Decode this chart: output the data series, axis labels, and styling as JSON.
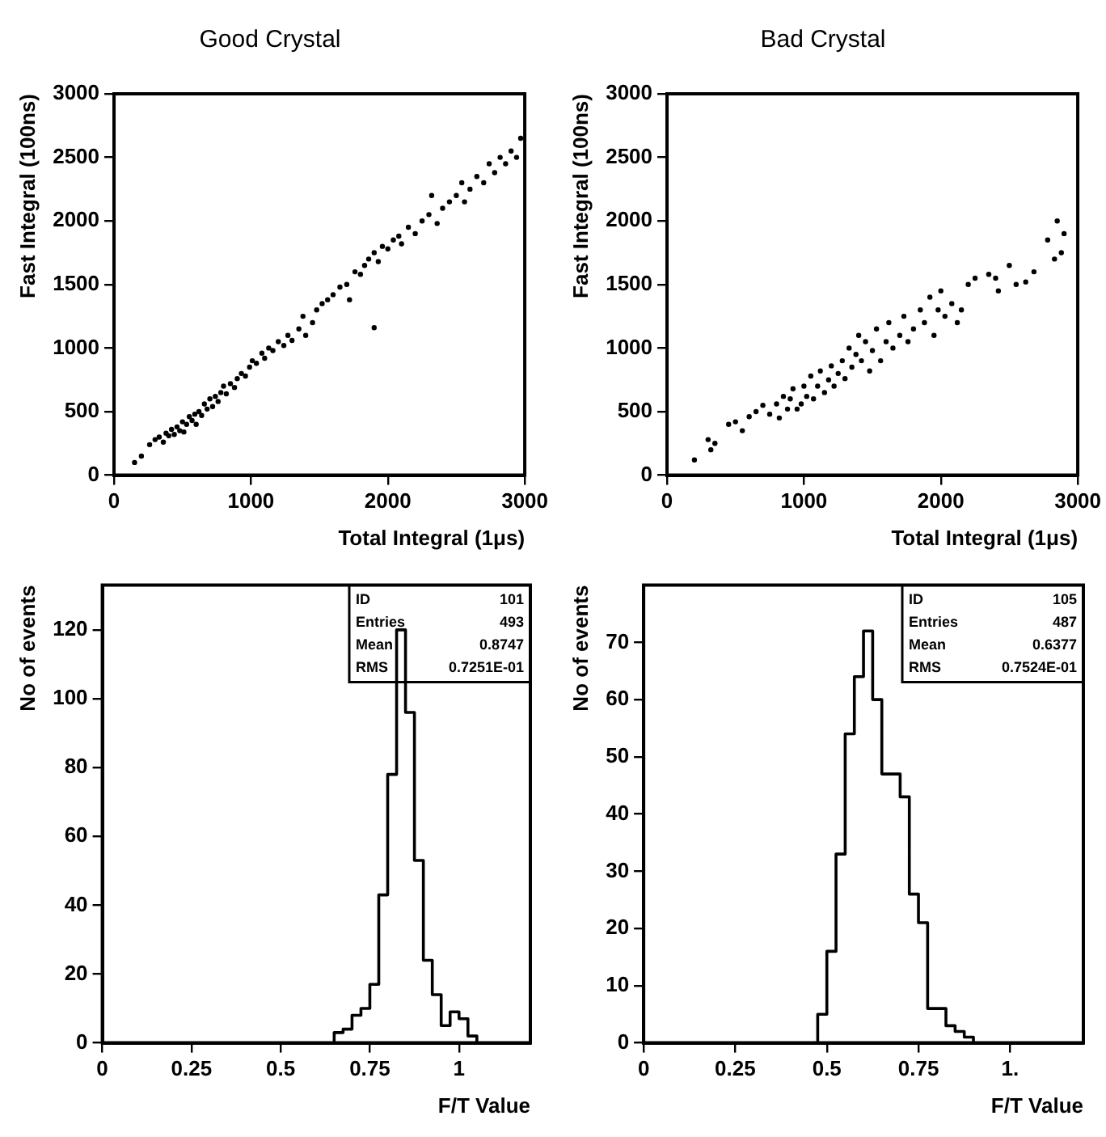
{
  "chart_data": [
    {
      "type": "scatter",
      "title": "Good Crystal",
      "xlabel": "Total Integral (1μs)",
      "ylabel": "Fast Integral (100ns)",
      "xlim": [
        0,
        3000
      ],
      "ylim": [
        0,
        3000
      ],
      "xticks": [
        0,
        1000,
        2000,
        3000
      ],
      "yticks": [
        0,
        500,
        1000,
        1500,
        2000,
        2500,
        3000
      ],
      "grid": false,
      "legend": false,
      "marker": "circle",
      "color": "#000000",
      "x": [
        150,
        200,
        260,
        300,
        330,
        360,
        380,
        400,
        420,
        440,
        460,
        480,
        500,
        510,
        530,
        550,
        570,
        590,
        600,
        620,
        640,
        660,
        680,
        700,
        720,
        740,
        760,
        780,
        800,
        820,
        850,
        880,
        900,
        930,
        960,
        990,
        1010,
        1040,
        1080,
        1100,
        1130,
        1160,
        1200,
        1240,
        1270,
        1300,
        1350,
        1380,
        1400,
        1450,
        1480,
        1520,
        1560,
        1600,
        1650,
        1700,
        1720,
        1760,
        1800,
        1830,
        1860,
        1900,
        1930,
        1960,
        2000,
        2040,
        2080,
        2100,
        2150,
        2200,
        2250,
        2300,
        2320,
        2360,
        2400,
        2450,
        2500,
        2540,
        2560,
        2600,
        2650,
        2700,
        2740,
        2780,
        2820,
        2860,
        2900,
        2940,
        2970,
        1900
      ],
      "values": [
        100,
        150,
        240,
        280,
        300,
        260,
        330,
        310,
        360,
        320,
        380,
        350,
        420,
        340,
        400,
        460,
        430,
        480,
        400,
        500,
        470,
        560,
        520,
        600,
        540,
        620,
        580,
        650,
        700,
        640,
        720,
        690,
        760,
        800,
        780,
        850,
        900,
        880,
        960,
        920,
        1000,
        980,
        1050,
        1020,
        1100,
        1060,
        1150,
        1250,
        1100,
        1200,
        1300,
        1350,
        1380,
        1420,
        1480,
        1500,
        1380,
        1600,
        1580,
        1650,
        1700,
        1750,
        1680,
        1800,
        1780,
        1850,
        1880,
        1820,
        1950,
        1900,
        2000,
        2050,
        2200,
        1980,
        2100,
        2150,
        2200,
        2300,
        2150,
        2250,
        2350,
        2300,
        2450,
        2380,
        2500,
        2450,
        2550,
        2500,
        2650,
        1160
      ]
    },
    {
      "type": "scatter",
      "title": "Bad Crystal",
      "xlabel": "Total Integral (1μs)",
      "ylabel": "Fast Integral (100ns)",
      "xlim": [
        0,
        3000
      ],
      "ylim": [
        0,
        3000
      ],
      "xticks": [
        0,
        1000,
        2000,
        3000
      ],
      "yticks": [
        0,
        500,
        1000,
        1500,
        2000,
        2500,
        3000
      ],
      "grid": false,
      "legend": false,
      "marker": "circle",
      "color": "#000000",
      "x": [
        200,
        300,
        320,
        350,
        450,
        500,
        550,
        600,
        650,
        700,
        750,
        800,
        820,
        850,
        880,
        900,
        920,
        950,
        980,
        1000,
        1020,
        1050,
        1070,
        1100,
        1120,
        1150,
        1180,
        1200,
        1220,
        1250,
        1280,
        1300,
        1330,
        1350,
        1380,
        1400,
        1420,
        1450,
        1480,
        1500,
        1530,
        1560,
        1600,
        1620,
        1650,
        1700,
        1730,
        1760,
        1800,
        1850,
        1880,
        1920,
        1950,
        1980,
        2000,
        2030,
        2080,
        2120,
        2150,
        2200,
        2250,
        2350,
        2400,
        2420,
        2500,
        2550,
        2620,
        2680,
        2780,
        2850,
        2830,
        2880,
        2900
      ],
      "values": [
        120,
        280,
        200,
        250,
        400,
        420,
        350,
        460,
        500,
        550,
        480,
        560,
        450,
        620,
        520,
        600,
        680,
        520,
        560,
        700,
        620,
        780,
        600,
        700,
        820,
        650,
        750,
        860,
        700,
        800,
        900,
        760,
        1000,
        850,
        950,
        1100,
        900,
        1050,
        820,
        980,
        1150,
        900,
        1050,
        1200,
        1000,
        1100,
        1250,
        1050,
        1150,
        1300,
        1200,
        1400,
        1100,
        1300,
        1450,
        1250,
        1350,
        1200,
        1300,
        1500,
        1550,
        1580,
        1550,
        1450,
        1650,
        1500,
        1520,
        1600,
        1850,
        2000,
        1700,
        1750,
        1900
      ]
    },
    {
      "type": "histogram",
      "xlabel": "F/T Value",
      "ylabel": "No of events",
      "xlim": [
        0,
        1.2
      ],
      "ylim": [
        0,
        133
      ],
      "xticks": [
        0,
        0.25,
        0.5,
        0.75,
        1
      ],
      "yticks": [
        0,
        20,
        40,
        60,
        80,
        100,
        120
      ],
      "grid": false,
      "legend": false,
      "color": "#000000",
      "annotations": [
        "ID 101",
        "Entries 493",
        "Mean 0.8747",
        "RMS 0.7251E-01"
      ],
      "bins": [
        0.65,
        0.675,
        0.7,
        0.725,
        0.75,
        0.775,
        0.8,
        0.825,
        0.85,
        0.875,
        0.9,
        0.925,
        0.95,
        0.975,
        1.0,
        1.025,
        1.05
      ],
      "values": [
        3,
        4,
        8,
        10,
        17,
        43,
        78,
        120,
        96,
        53,
        24,
        14,
        5,
        9,
        7,
        2
      ]
    },
    {
      "type": "histogram",
      "xlabel": "F/T Value",
      "ylabel": "No of events",
      "xlim": [
        0,
        1.2
      ],
      "ylim": [
        0,
        80
      ],
      "xticks": [
        0,
        0.25,
        0.5,
        0.75,
        {
          "value": 1,
          "label": "1."
        }
      ],
      "yticks": [
        0,
        10,
        20,
        30,
        40,
        50,
        60,
        70
      ],
      "grid": false,
      "legend": false,
      "color": "#000000",
      "annotations": [
        "ID 105",
        "Entries 487",
        "Mean 0.6377",
        "RMS 0.7524E-01"
      ],
      "bins": [
        0.475,
        0.5,
        0.525,
        0.55,
        0.575,
        0.6,
        0.625,
        0.65,
        0.675,
        0.7,
        0.725,
        0.75,
        0.775,
        0.8,
        0.825,
        0.85,
        0.875,
        0.9
      ],
      "values": [
        5,
        16,
        33,
        54,
        64,
        72,
        60,
        47,
        47,
        43,
        26,
        21,
        6,
        6,
        3,
        2,
        1
      ]
    }
  ]
}
